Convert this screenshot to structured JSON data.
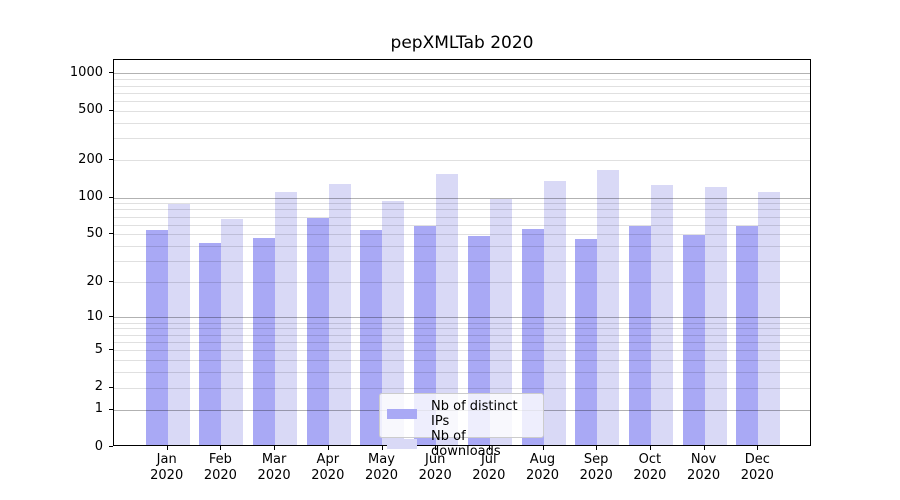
{
  "title": "pepXMLTab 2020",
  "colors": {
    "ips_bar": "#a9a9f5",
    "downloads_bar": "#d9d9f6",
    "spine": "#000000",
    "major_grid": "rgba(0,0,0,0.30)",
    "minor_grid": "rgba(0,0,0,0.12)",
    "legend_border": "#cccccc",
    "legend_bg": "rgba(255,255,255,0.8)",
    "text": "#000000"
  },
  "legend": {
    "items": [
      {
        "label": "Nb of distinct IPs",
        "color": "#a9a9f5"
      },
      {
        "label": "Nb of downloads",
        "color": "#d9d9f6"
      }
    ]
  },
  "chart_data": {
    "type": "bar",
    "title": "pepXMLTab 2020",
    "categories": [
      "Jan",
      "Feb",
      "Mar",
      "Apr",
      "May",
      "Jun",
      "Jul",
      "Aug",
      "Sep",
      "Oct",
      "Nov",
      "Dec"
    ],
    "x_year": "2020",
    "series": [
      {
        "name": "Nb of distinct IPs",
        "color": "#a9a9f5",
        "values": [
          52,
          41,
          45,
          66,
          52,
          57,
          47,
          53,
          44,
          56,
          48,
          56
        ]
      },
      {
        "name": "Nb of downloads",
        "color": "#d9d9f6",
        "values": [
          85,
          65,
          106,
          123,
          91,
          150,
          94,
          131,
          160,
          121,
          117,
          106
        ]
      }
    ],
    "y_scale": "log1p",
    "y_ticks": [
      0,
      1,
      2,
      5,
      10,
      20,
      50,
      100,
      200,
      500,
      1000
    ],
    "y_gridlines": {
      "major": [
        1,
        10,
        100,
        1000
      ],
      "minor": [
        2,
        3,
        4,
        5,
        6,
        7,
        8,
        9,
        20,
        30,
        40,
        50,
        60,
        70,
        80,
        90,
        200,
        300,
        400,
        500,
        600,
        700,
        800,
        900
      ]
    },
    "ylim": [
      0,
      1265
    ],
    "xlabel": "",
    "ylabel": "",
    "grid": "on",
    "legend_position": "lower center"
  }
}
